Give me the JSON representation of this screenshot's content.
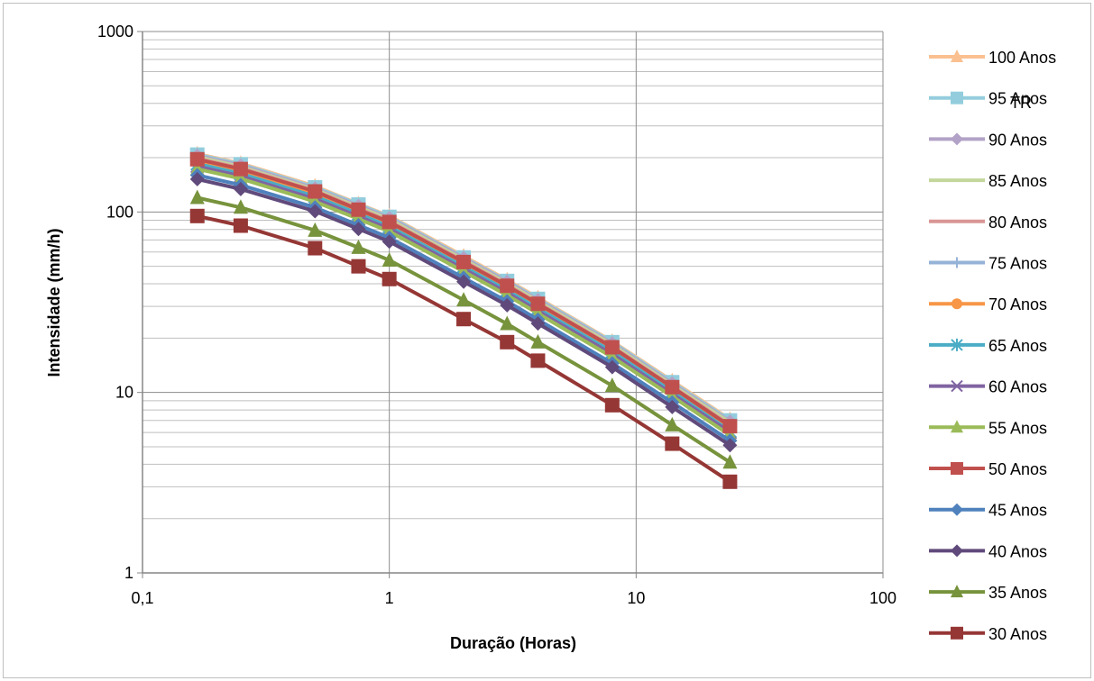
{
  "chart_data": {
    "type": "line",
    "title": "",
    "xlabel": "Duração (Horas)",
    "ylabel": "Intensidade (mm/h)",
    "x_scale": "log",
    "y_scale": "log",
    "xlim": [
      0.1,
      100
    ],
    "ylim": [
      1,
      1000
    ],
    "x_ticks": [
      "0,1",
      "1",
      "10",
      "100"
    ],
    "y_ticks": [
      "1",
      "10",
      "100",
      "1000"
    ],
    "grid": "major and minor horizontal, major vertical",
    "legend_title": "TR",
    "legend_position": "right",
    "x": [
      0.1667,
      0.25,
      0.5,
      0.75,
      1,
      2,
      3,
      4,
      8,
      14,
      24
    ],
    "series": [
      {
        "name": "100 Anos",
        "color": "#fac090",
        "marker": "triangle",
        "values": [
          210,
          186,
          139,
          111,
          95,
          57,
          42,
          33.5,
          19.2,
          11.6,
          7.1
        ]
      },
      {
        "name": "95 Anos",
        "color": "#93cddd",
        "marker": "square",
        "values": [
          208,
          184,
          137,
          110,
          94,
          56,
          41.5,
          33,
          19,
          11.4,
          7.0
        ]
      },
      {
        "name": "90 Anos",
        "color": "#b3a2c7",
        "marker": "diamond",
        "values": [
          205,
          181,
          135,
          108,
          92.5,
          55.5,
          41,
          32.5,
          18.7,
          11.2,
          6.9
        ]
      },
      {
        "name": "85 Anos",
        "color": "#c3d69b",
        "marker": "none",
        "values": [
          202,
          178,
          133,
          106.5,
          91,
          54.5,
          40.3,
          32,
          18.4,
          11.0,
          6.8
        ]
      },
      {
        "name": "80 Anos",
        "color": "#d99694",
        "marker": "none",
        "values": [
          198,
          175,
          131,
          104.5,
          89,
          53.5,
          39.5,
          31.3,
          18.0,
          10.8,
          6.6
        ]
      },
      {
        "name": "75 Anos",
        "color": "#95b3d7",
        "marker": "plus",
        "values": [
          194,
          171,
          128,
          102,
          87,
          52.3,
          38.6,
          30.6,
          17.6,
          10.6,
          6.5
        ]
      },
      {
        "name": "70 Anos",
        "color": "#f79646",
        "marker": "circle",
        "values": [
          190,
          167,
          125,
          100,
          85,
          51,
          37.7,
          29.9,
          17.2,
          10.3,
          6.3
        ]
      },
      {
        "name": "65 Anos",
        "color": "#4bacc6",
        "marker": "star",
        "values": [
          185,
          163,
          122,
          97.5,
          83,
          49.8,
          36.8,
          29.2,
          16.8,
          10.1,
          6.1
        ]
      },
      {
        "name": "60 Anos",
        "color": "#8064a2",
        "marker": "x",
        "values": [
          179,
          158,
          118,
          94.5,
          80.5,
          48.3,
          35.7,
          28.3,
          16.3,
          9.8,
          6.0
        ]
      },
      {
        "name": "55 Anos",
        "color": "#9bbb59",
        "marker": "triangle",
        "values": [
          173,
          153,
          114,
          91.5,
          78,
          46.8,
          34.6,
          27.4,
          15.7,
          9.5,
          5.8
        ]
      },
      {
        "name": "50 Anos",
        "color": "#c0504d",
        "marker": "square",
        "values": [
          196,
          173,
          130,
          103,
          88,
          52.8,
          39,
          31,
          17.8,
          10.7,
          6.5
        ]
      },
      {
        "name": "45 Anos",
        "color": "#4f81bd",
        "marker": "diamond",
        "values": [
          160,
          141,
          106,
          84.5,
          72,
          43.2,
          32,
          25.3,
          14.5,
          8.8,
          5.4
        ]
      },
      {
        "name": "40 Anos",
        "color": "#604a7b",
        "marker": "diamond",
        "values": [
          152,
          134,
          101,
          80.5,
          68.5,
          41.1,
          30.4,
          24.1,
          13.8,
          8.3,
          5.1
        ]
      },
      {
        "name": "35 Anos",
        "color": "#77933c",
        "marker": "triangle",
        "values": [
          120,
          106,
          79,
          63.5,
          54,
          32.5,
          24,
          19,
          10.9,
          6.6,
          4.1
        ]
      },
      {
        "name": "30 Anos",
        "color": "#953735",
        "marker": "square",
        "values": [
          95,
          84,
          63,
          50,
          42.5,
          25.5,
          19,
          15,
          8.5,
          5.2,
          3.2
        ]
      }
    ]
  }
}
